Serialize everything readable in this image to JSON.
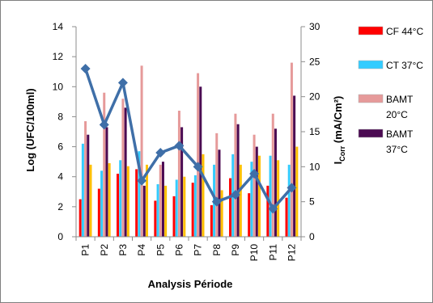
{
  "chart_data": {
    "type": "bar",
    "categories": [
      "P1",
      "P2",
      "P3",
      "P4",
      "P5",
      "P6",
      "P7",
      "P8",
      "P9",
      "P10",
      "P11",
      "P12"
    ],
    "series": [
      {
        "name": "CF 44°C",
        "color": "#ff0000",
        "axis": "left",
        "values": [
          2.5,
          3.2,
          4.2,
          4.5,
          2.4,
          2.7,
          3.6,
          2.1,
          3.9,
          2.9,
          3.4,
          2.6
        ]
      },
      {
        "name": "CT 37°C",
        "color": "#33ccff",
        "axis": "left",
        "values": [
          6.2,
          4.4,
          5.1,
          5.7,
          3.5,
          3.8,
          4.1,
          4.8,
          5.5,
          5.0,
          5.4,
          4.8
        ]
      },
      {
        "name": "BAMT 20°C",
        "color": "#e69a9a",
        "axis": "left",
        "values": [
          7.7,
          9.6,
          9.2,
          11.4,
          4.8,
          8.4,
          10.9,
          6.9,
          8.2,
          6.8,
          8.2,
          11.6
        ]
      },
      {
        "name": "BAMT 37°C",
        "color": "#4b0a52",
        "axis": "left",
        "values": [
          6.8,
          7.3,
          8.6,
          3.4,
          5.0,
          7.3,
          10.0,
          5.8,
          7.5,
          6.0,
          7.2,
          9.4
        ]
      },
      {
        "name": "",
        "color": "#ffc000",
        "axis": "left",
        "values": [
          4.8,
          4.9,
          4.7,
          4.8,
          3.4,
          4.0,
          5.5,
          3.1,
          4.8,
          5.4,
          5.1,
          6.0
        ]
      }
    ],
    "line_series": {
      "name": "",
      "color": "#3f6fa8",
      "axis": "right",
      "values": [
        24,
        16,
        22,
        8,
        12,
        13,
        10,
        5,
        6,
        9,
        4,
        7
      ]
    },
    "xlabel": "Analysis Période",
    "ylabel": "Log  (UFC/100ml)",
    "y2label_main": "I",
    "y2label_sub": "Corr",
    "y2label_rest": " (mA/Cm²)",
    "ylim": [
      0,
      14
    ],
    "yticks": [
      "0",
      "2",
      "4",
      "6",
      "8",
      "10",
      "12",
      "14"
    ],
    "y2lim": [
      0,
      30
    ],
    "y2ticks": [
      "0",
      "5",
      "10",
      "15",
      "20",
      "25",
      "30"
    ],
    "grid": false,
    "legend_placement": "right"
  },
  "legend": [
    {
      "lines": [
        "CF 44°C"
      ],
      "color": "#ff0000"
    },
    {
      "lines": [
        "CT 37°C"
      ],
      "color": "#33ccff"
    },
    {
      "lines": [
        "BAMT",
        "20°C"
      ],
      "color": "#e69a9a"
    },
    {
      "lines": [
        "BAMT",
        "37°C"
      ],
      "color": "#4b0a52"
    }
  ]
}
